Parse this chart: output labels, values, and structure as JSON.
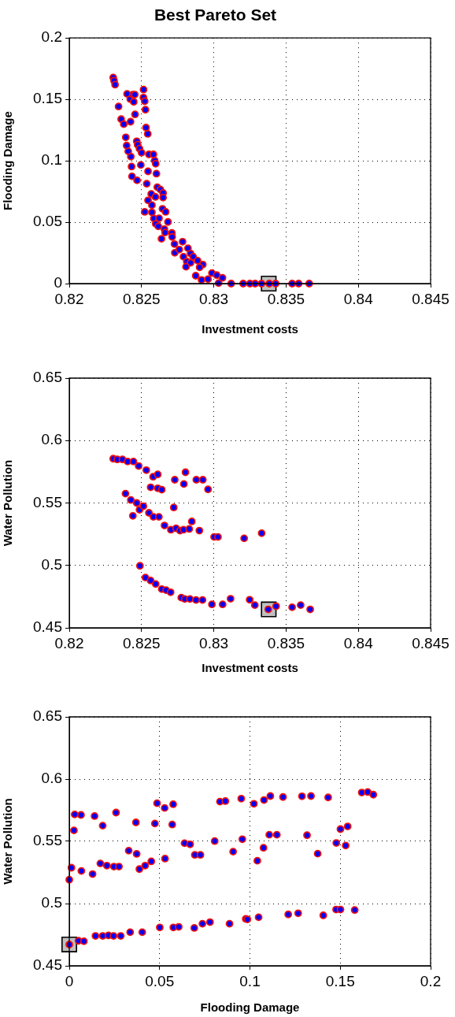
{
  "chart_data": [
    {
      "type": "scatter",
      "title": "Best Pareto Set",
      "xlabel": "Investment costs",
      "ylabel": "Flooding Damage",
      "xlim": [
        0.82,
        0.845
      ],
      "xticks": [
        0.82,
        0.825,
        0.83,
        0.835,
        0.84,
        0.845
      ],
      "ylim": [
        0,
        0.2
      ],
      "yticks": [
        0,
        0.05,
        0.1,
        0.15,
        0.2
      ],
      "grid": true,
      "marker": "circle",
      "series": [
        {
          "color": "#0000ff",
          "x": [
            0.82304,
            0.8231,
            0.82317,
            0.824,
            0.82422,
            0.8244,
            0.82453,
            0.82446,
            0.82514,
            0.82513,
            0.82522,
            0.82527,
            0.82341,
            0.82455,
            0.82359,
            0.82377,
            0.82424,
            0.82531,
            0.82543,
            0.82391,
            0.82397,
            0.82408,
            0.82426,
            0.82467,
            0.82473,
            0.82486,
            0.825,
            0.82551,
            0.82582,
            0.82591,
            0.82598,
            0.82431,
            0.82495,
            0.82434,
            0.82469,
            0.82545,
            0.82603,
            0.82536,
            0.82609,
            0.8263,
            0.82649,
            0.82567,
            0.82649,
            0.82545,
            0.82596,
            0.82572,
            0.82645,
            0.82667,
            0.82522,
            0.82572,
            0.82585,
            0.82621,
            0.82598,
            0.82616,
            0.82683,
            0.82658,
            0.82663,
            0.82638,
            0.8271,
            0.82712,
            0.82728,
            0.82784,
            0.8273,
            0.82761,
            0.82821,
            0.82839,
            0.8279,
            0.82857,
            0.82888,
            0.82813,
            0.82839,
            0.82808,
            0.82924,
            0.82902,
            0.82875,
            0.82915,
            0.8296,
            0.82987,
            0.8302,
            0.8306,
            0.83033,
            0.8312,
            0.83203,
            0.8325,
            0.83286,
            0.8333,
            0.83384,
            0.83428,
            0.83542,
            0.83587,
            0.8366
          ],
          "values": [
            0.1678,
            0.1652,
            0.162,
            0.1545,
            0.1502,
            0.1539,
            0.1539,
            0.148,
            0.158,
            0.1515,
            0.1485,
            0.1416,
            0.1442,
            0.1378,
            0.1339,
            0.1298,
            0.1318,
            0.127,
            0.1219,
            0.1191,
            0.1124,
            0.1077,
            0.1034,
            0.1159,
            0.1131,
            0.1099,
            0.1066,
            0.1052,
            0.1052,
            0.1002,
            0.0976,
            0.0953,
            0.0966,
            0.0873,
            0.0841,
            0.0914,
            0.0895,
            0.0813,
            0.0785,
            0.0766,
            0.0738,
            0.073,
            0.07,
            0.0678,
            0.0706,
            0.0639,
            0.0609,
            0.0584,
            0.0584,
            0.058,
            0.053,
            0.0532,
            0.0487,
            0.0466,
            0.0502,
            0.0444,
            0.0416,
            0.0365,
            0.0412,
            0.038,
            0.0322,
            0.0341,
            0.0251,
            0.0277,
            0.0288,
            0.0245,
            0.0219,
            0.0219,
            0.0187,
            0.018,
            0.017,
            0.0137,
            0.0155,
            0.0133,
            0.0064,
            0.003,
            0.0036,
            0.0086,
            0.0069,
            0.0047,
            0.0004,
            0,
            0,
            0,
            0,
            0,
            0,
            0,
            0,
            0,
            0
          ]
        },
        {
          "color": "#c0c0c0",
          "marker": "square",
          "x": [
            0.8338
          ],
          "values": [
            0
          ]
        }
      ]
    },
    {
      "type": "scatter",
      "xlabel": "Investment costs",
      "ylabel": "Water Pollution",
      "xlim": [
        0.82,
        0.845
      ],
      "xticks": [
        0.82,
        0.825,
        0.83,
        0.835,
        0.84,
        0.845
      ],
      "ylim": [
        0.45,
        0.65
      ],
      "yticks": [
        0.45,
        0.5,
        0.55,
        0.6,
        0.65
      ],
      "grid": true,
      "marker": "circle",
      "series": [
        {
          "color": "#0000ff",
          "x": [
            0.82304,
            0.82332,
            0.82368,
            0.82404,
            0.82444,
            0.8248,
            0.82533,
            0.8258,
            0.82612,
            0.82804,
            0.8273,
            0.82793,
            0.82879,
            0.82924,
            0.8296,
            0.82563,
            0.82612,
            0.8264,
            0.82389,
            0.82426,
            0.82467,
            0.82486,
            0.82513,
            0.8244,
            0.82551,
            0.82582,
            0.8262,
            0.82723,
            0.82659,
            0.82703,
            0.82739,
            0.82766,
            0.8279,
            0.8283,
            0.82848,
            0.829,
            0.83002,
            0.83029,
            0.8321,
            0.83331,
            0.82489,
            0.82527,
            0.82563,
            0.82598,
            0.8264,
            0.8267,
            0.82701,
            0.82775,
            0.82799,
            0.82835,
            0.82877,
            0.82922,
            0.82987,
            0.83061,
            0.83116,
            0.83248,
            0.83284,
            0.83377,
            0.83431,
            0.83542,
            0.83601,
            0.83667
          ],
          "values": [
            0.5855,
            0.5849,
            0.5849,
            0.5832,
            0.5832,
            0.5796,
            0.5763,
            0.571,
            0.5729,
            0.5746,
            0.5686,
            0.5652,
            0.5686,
            0.5686,
            0.5609,
            0.5626,
            0.5618,
            0.5607,
            0.5575,
            0.5524,
            0.55,
            0.5446,
            0.5474,
            0.5397,
            0.5421,
            0.5389,
            0.5389,
            0.5464,
            0.532,
            0.5286,
            0.5297,
            0.5279,
            0.5286,
            0.5292,
            0.5352,
            0.5279,
            0.5228,
            0.5228,
            0.5217,
            0.5258,
            0.4997,
            0.4903,
            0.4879,
            0.4851,
            0.481,
            0.4802,
            0.4785,
            0.4742,
            0.4731,
            0.4731,
            0.4723,
            0.4723,
            0.4688,
            0.4688,
            0.4733,
            0.4725,
            0.4682,
            0.4648,
            0.4673,
            0.4665,
            0.4682,
            0.4648
          ]
        },
        {
          "color": "#c0c0c0",
          "marker": "square",
          "x": [
            0.8338
          ],
          "values": [
            0.4648
          ]
        }
      ]
    },
    {
      "type": "scatter",
      "xlabel": "Flooding Damage",
      "ylabel": "Water Pollution",
      "xlim": [
        0,
        0.2
      ],
      "xticks": [
        0,
        0.05,
        0.1,
        0.15,
        0.2
      ],
      "ylim": [
        0.45,
        0.65
      ],
      "yticks": [
        0.45,
        0.5,
        0.55,
        0.6,
        0.65
      ],
      "grid": true,
      "marker": "circle",
      "series": [
        {
          "color": "#0000ff",
          "x": [
            0,
            0.0051,
            0.0081,
            0.0145,
            0.0185,
            0.0217,
            0.0245,
            0.0285,
            0.0337,
            0.0404,
            0.0501,
            0.0576,
            0.0606,
            0.0692,
            0.0737,
            0.0779,
            0.0887,
            0.0977,
            0.0986,
            0.1048,
            0.1212,
            0.1267,
            0.1406,
            0.1477,
            0.1501,
            0.158,
            0,
            0.0012,
            0.0067,
            0.0129,
            0.0172,
            0.0208,
            0.0247,
            0.0275,
            0.0329,
            0.0373,
            0.0388,
            0.042,
            0.0454,
            0.053,
            0.0638,
            0.0669,
            0.0695,
            0.0726,
            0.0805,
            0.0907,
            0.0958,
            0.1041,
            0.1075,
            0.1107,
            0.1149,
            0.1316,
            0.1375,
            0.1478,
            0.1501,
            0.153,
            0.1541,
            0.0026,
            0.003,
            0.0065,
            0.014,
            0.0185,
            0.0259,
            0.0369,
            0.0474,
            0.0486,
            0.0528,
            0.0575,
            0.057,
            0.0834,
            0.0864,
            0.0952,
            0.1022,
            0.1078,
            0.1113,
            0.1183,
            0.1288,
            0.1338,
            0.1433,
            0.1619,
            0.1652,
            0.1683
          ],
          "values": [
            0.4671,
            0.4701,
            0.4697,
            0.474,
            0.474,
            0.4744,
            0.474,
            0.474,
            0.477,
            0.477,
            0.4808,
            0.4808,
            0.4813,
            0.4804,
            0.4838,
            0.4851,
            0.4838,
            0.4877,
            0.4873,
            0.489,
            0.4913,
            0.4922,
            0.4905,
            0.4952,
            0.4952,
            0.4948,
            0.5192,
            0.5288,
            0.5262,
            0.5237,
            0.5322,
            0.5305,
            0.5297,
            0.5297,
            0.5425,
            0.5399,
            0.5277,
            0.5305,
            0.5339,
            0.5361,
            0.5485,
            0.5476,
            0.5391,
            0.5391,
            0.5502,
            0.5417,
            0.5517,
            0.5344,
            0.5448,
            0.5553,
            0.5553,
            0.5549,
            0.5401,
            0.5487,
            0.5598,
            0.5466,
            0.562,
            0.5588,
            0.5716,
            0.5712,
            0.5703,
            0.5626,
            0.5731,
            0.5652,
            0.5643,
            0.5806,
            0.5768,
            0.5798,
            0.5635,
            0.5819,
            0.5823,
            0.5843,
            0.5802,
            0.5832,
            0.5864,
            0.5856,
            0.5862,
            0.5864,
            0.5853,
            0.5892,
            0.5896,
            0.5875
          ]
        },
        {
          "color": "#c0c0c0",
          "marker": "square",
          "x": [
            0
          ],
          "values": [
            0.4671
          ]
        }
      ]
    }
  ]
}
